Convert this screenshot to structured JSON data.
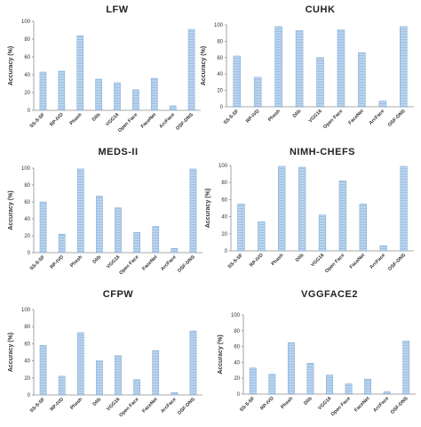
{
  "style": {
    "bar_color": "#b9d3ee",
    "bar_stripe": "#9fc0e2",
    "axis_color": "#8c8c8c"
  },
  "chart_data": [
    {
      "type": "bar",
      "title": "LFW",
      "ylabel": "Accuracy (%)",
      "ylim": [
        0,
        100
      ],
      "yticks": [
        0,
        20,
        40,
        60,
        80,
        100
      ],
      "categories": [
        "SS-5-SF",
        "RP-IVD",
        "Phash",
        "Dlib",
        "VGG16",
        "Open Face",
        "FaceNet",
        "ArcFace",
        "OSF-DNS"
      ],
      "values": [
        43,
        44,
        84,
        35,
        31,
        23,
        36,
        5,
        91
      ]
    },
    {
      "type": "bar",
      "title": "CUHK",
      "ylabel": "Accuracy (%)",
      "ylim": [
        0,
        100
      ],
      "yticks": [
        0,
        20,
        40,
        60,
        80,
        100
      ],
      "categories": [
        "SS-5-SF",
        "RP-IVD",
        "Phash",
        "Dlib",
        "VGG16",
        "Open Face",
        "FaceNet",
        "ArcFace",
        "OSF-DNS"
      ],
      "values": [
        62,
        36,
        98,
        93,
        60,
        94,
        66,
        7,
        98
      ]
    },
    {
      "type": "bar",
      "title": "MEDS-II",
      "ylabel": "Accuracy (%)",
      "ylim": [
        0,
        100
      ],
      "yticks": [
        0,
        20,
        40,
        60,
        80,
        100
      ],
      "categories": [
        "SS-5-SF",
        "RP-IVD",
        "Phash",
        "Dlib",
        "VGG16",
        "Open Face",
        "FaceNet",
        "ArcFace",
        "OSF-DNS"
      ],
      "values": [
        60,
        22,
        99,
        67,
        53,
        24,
        31,
        5,
        99
      ]
    },
    {
      "type": "bar",
      "title": "NIMH-CHEFS",
      "ylabel": "Accuracy (%)",
      "ylim": [
        0,
        100
      ],
      "yticks": [
        0,
        20,
        40,
        60,
        80,
        100
      ],
      "categories": [
        "SS-5-SF",
        "RP-IVD",
        "Phash",
        "Dlib",
        "VGG16",
        "Open Face",
        "FaceNet",
        "ArcFace",
        "OSF-DNS"
      ],
      "values": [
        55,
        34,
        99,
        98,
        42,
        82,
        55,
        6,
        99
      ]
    },
    {
      "type": "bar",
      "title": "CFPW",
      "ylabel": "Accuracy (%)",
      "ylim": [
        0,
        100
      ],
      "yticks": [
        0,
        20,
        40,
        60,
        80,
        100
      ],
      "categories": [
        "SS-5-SF",
        "RP-IVD",
        "Phash",
        "Dlib",
        "VGG16",
        "Open Face",
        "FaceNet",
        "ArcFace",
        "OSF-DNS"
      ],
      "values": [
        58,
        22,
        73,
        40,
        46,
        18,
        52,
        3,
        75
      ]
    },
    {
      "type": "bar",
      "title": "VGGFACE2",
      "ylabel": "Accuracy (%)",
      "ylim": [
        0,
        100
      ],
      "yticks": [
        0,
        20,
        40,
        60,
        80,
        100
      ],
      "categories": [
        "SS-5-SF",
        "RP-IVD",
        "Phash",
        "Dlib",
        "VGG16",
        "Open Face",
        "FaceNet",
        "ArcFace",
        "OSF-DNS"
      ],
      "values": [
        33,
        25,
        65,
        39,
        24,
        13,
        19,
        3,
        67
      ]
    }
  ]
}
